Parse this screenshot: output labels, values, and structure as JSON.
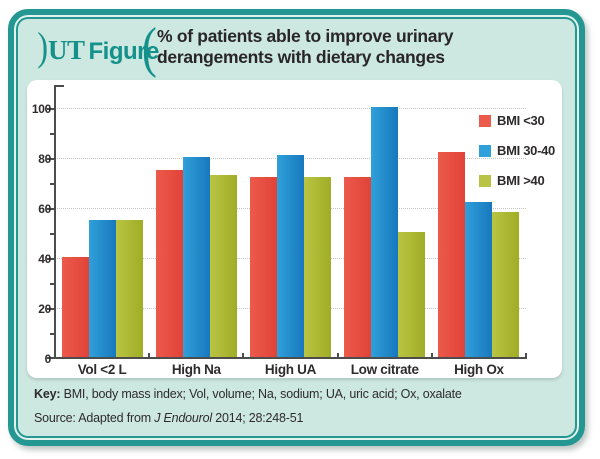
{
  "header": {
    "bracket_left": ")",
    "brand_ut": "UT",
    "brand_figure": "Figure",
    "bracket_right": "(",
    "title_line1": "% of patients able to improve urinary",
    "title_line2": "derangements with dietary changes"
  },
  "chart_data": {
    "type": "bar",
    "title": "% of patients able to improve urinary derangements with dietary changes",
    "categories": [
      "Vol <2 L",
      "High Na",
      "High UA",
      "Low citrate",
      "High Ox"
    ],
    "series": [
      {
        "name": "BMI <30",
        "color": "#ec5a4c",
        "color_dark": "#e04337",
        "values": [
          40,
          75,
          72,
          72,
          82
        ]
      },
      {
        "name": "BMI 30-40",
        "color": "#30a0da",
        "color_dark": "#1878bd",
        "values": [
          55,
          80,
          81,
          100,
          62
        ]
      },
      {
        "name": "BMI >40",
        "color": "#bac444",
        "color_dark": "#a0ad26",
        "values": [
          55,
          73,
          72,
          50,
          58
        ]
      }
    ],
    "ylim": [
      0,
      100
    ],
    "yticks": [
      0,
      20,
      40,
      60,
      80,
      100
    ],
    "ytick_minor": [
      10,
      30,
      50,
      70,
      90
    ],
    "grid": "horizontal dotted at major ticks",
    "legend_position": "top-right",
    "xlabel": "",
    "ylabel": ""
  },
  "colors": {
    "card_border": "#259792",
    "card_background": "#cde8e0",
    "brand_teal": "#14918b",
    "axis": "#4c4c4c",
    "gridline": "#c5c5c5",
    "text": "#2e2b2c"
  },
  "footer": {
    "key_label": "Key:",
    "key_text": " BMI, body mass index; Vol, volume; Na, sodium; UA, uric acid; Ox, oxalate",
    "source_prefix": "Source: Adapted from ",
    "source_journal": "J Endourol",
    "source_suffix": " 2014; 28:248-51"
  }
}
